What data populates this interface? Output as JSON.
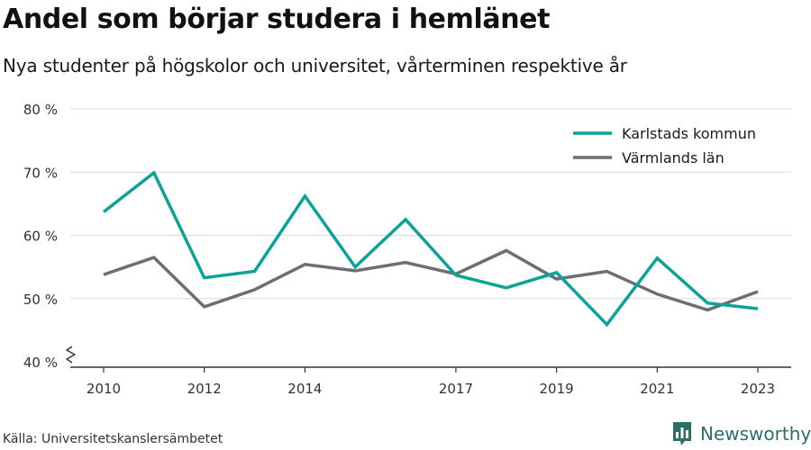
{
  "title": "Andel som börjar studera i hemlänet",
  "subtitle": "Nya studenter på högskolor och universitet, vårterminen respektive år",
  "source": "Källa: Universitetskanslersämbetet",
  "brand": {
    "name": "Newsworthy",
    "icon": "newsworthy-logo-icon",
    "color": "#2c6e68"
  },
  "chart_data": {
    "type": "line",
    "title": "Andel som börjar studera i hemlänet",
    "subtitle": "Nya studenter på högskolor och universitet, vårterminen respektive år",
    "xlabel": "",
    "ylabel": "",
    "x": [
      2010,
      2011,
      2012,
      2013,
      2014,
      2015,
      2016,
      2017,
      2018,
      2019,
      2020,
      2021,
      2022,
      2023
    ],
    "x_tick_values": [
      2010,
      2012,
      2014,
      2017,
      2019,
      2021,
      2023
    ],
    "x_tick_labels": [
      "2010",
      "2012",
      "2014",
      "2017",
      "2019",
      "2021",
      "2023"
    ],
    "y_ticks": [
      40,
      50,
      60,
      70,
      80
    ],
    "y_tick_labels": [
      "40 %",
      "50 %",
      "60 %",
      "70 %",
      "80 %"
    ],
    "ylim": [
      40,
      80
    ],
    "y_axis_break": true,
    "grid": true,
    "legend_position": "top-right",
    "series": [
      {
        "name": "Karlstads kommun",
        "color": "#0ca397",
        "values": [
          63.7,
          69.9,
          53.3,
          54.3,
          66.2,
          55.0,
          62.5,
          53.7,
          51.7,
          54.1,
          45.9,
          56.4,
          49.3,
          48.4
        ]
      },
      {
        "name": "Värmlands län",
        "color": "#6d6d74",
        "values": [
          53.8,
          56.5,
          48.7,
          51.4,
          55.4,
          54.4,
          55.7,
          53.9,
          57.6,
          53.1,
          54.3,
          50.7,
          48.2,
          51.1
        ]
      }
    ]
  }
}
